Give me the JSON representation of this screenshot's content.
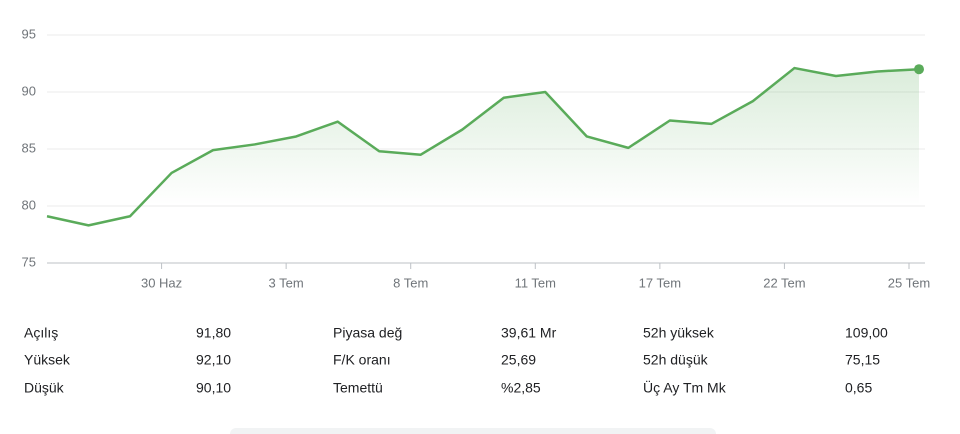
{
  "chart_data": {
    "type": "line",
    "color": "#5aab5a",
    "grid": true,
    "categories": [
      null,
      null,
      null,
      "30 Haz",
      null,
      null,
      "3 Tem",
      null,
      null,
      "8 Tem",
      null,
      null,
      "11 Tem",
      null,
      null,
      "17 Tem",
      null,
      null,
      "22 Tem",
      null,
      null,
      "25 Tem"
    ],
    "values": [
      79.1,
      78.3,
      79.1,
      82.9,
      84.9,
      85.4,
      86.1,
      87.4,
      84.8,
      84.5,
      86.7,
      89.5,
      90.0,
      86.1,
      85.1,
      87.5,
      87.2,
      89.2,
      92.1,
      91.4,
      91.8,
      92.0
    ],
    "ylim": [
      75,
      95
    ],
    "yticks": [
      75,
      80,
      85,
      90,
      95
    ]
  },
  "stats": [
    {
      "label": "Açılış",
      "value": "91,80"
    },
    {
      "label": "Yüksek",
      "value": "92,10"
    },
    {
      "label": "Düşük",
      "value": "90,10"
    },
    {
      "label": "Piyasa değ",
      "value": "39,61 Mr"
    },
    {
      "label": "F/K oranı",
      "value": "25,69"
    },
    {
      "label": "Temettü",
      "value": "%2,85"
    },
    {
      "label": "52h yüksek",
      "value": "109,00"
    },
    {
      "label": "52h düşük",
      "value": "75,15"
    },
    {
      "label": "Üç Ay Tm Mk",
      "value": "0,65"
    }
  ]
}
